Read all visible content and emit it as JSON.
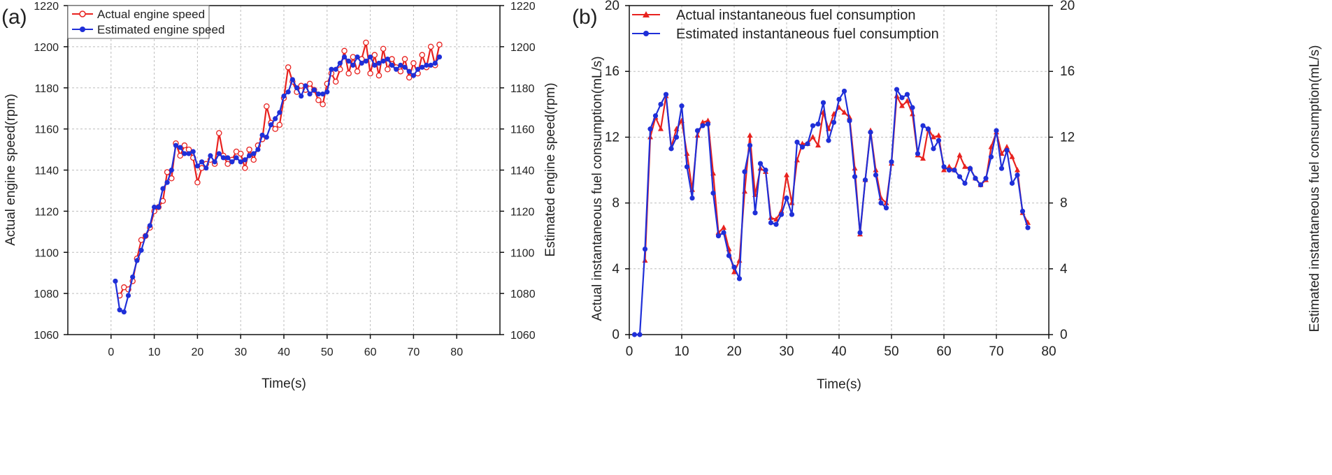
{
  "chart_data": [
    {
      "panel": "(a)",
      "type": "line",
      "xlabel": "Time(s)",
      "ylabel": "Actual engine speed(rpm)",
      "ylabel_right": "Estimated engine speed(rpm)",
      "xlim": [
        -10,
        90
      ],
      "ylim": [
        1060,
        1220
      ],
      "xticks": [
        0,
        10,
        20,
        30,
        40,
        50,
        60,
        70,
        80
      ],
      "yticks": [
        1060,
        1080,
        1100,
        1120,
        1140,
        1160,
        1180,
        1200,
        1220
      ],
      "grid": true,
      "legend_position": "top-left",
      "series": [
        {
          "name": "Actual engine speed",
          "color": "#e8221f",
          "marker": "open-circle",
          "x": [
            2,
            3,
            4,
            5,
            6,
            7,
            8,
            9,
            10,
            11,
            12,
            13,
            14,
            15,
            16,
            17,
            18,
            19,
            20,
            21,
            22,
            23,
            24,
            25,
            26,
            27,
            28,
            29,
            30,
            31,
            32,
            33,
            34,
            35,
            36,
            37,
            38,
            39,
            40,
            41,
            42,
            43,
            44,
            45,
            46,
            47,
            48,
            49,
            50,
            51,
            52,
            53,
            54,
            55,
            56,
            57,
            58,
            59,
            60,
            61,
            62,
            63,
            64,
            65,
            66,
            67,
            68,
            69,
            70,
            71,
            72,
            73,
            74,
            75,
            76
          ],
          "y": [
            1079,
            1083,
            1082,
            1086,
            1097,
            1106,
            1108,
            1112,
            1120,
            1122,
            1125,
            1139,
            1136,
            1153,
            1147,
            1152,
            1150,
            1146,
            1134,
            1141,
            1143,
            1145,
            1143,
            1158,
            1147,
            1143,
            1145,
            1149,
            1148,
            1141,
            1150,
            1145,
            1152,
            1155,
            1171,
            1163,
            1160,
            1162,
            1175,
            1190,
            1183,
            1178,
            1181,
            1179,
            1182,
            1179,
            1174,
            1172,
            1182,
            1187,
            1183,
            1189,
            1198,
            1187,
            1195,
            1188,
            1194,
            1202,
            1187,
            1196,
            1186,
            1199,
            1189,
            1194,
            1190,
            1188,
            1194,
            1185,
            1192,
            1187,
            1196,
            1190,
            1200,
            1191,
            1201
          ]
        },
        {
          "name": "Estimated engine speed",
          "color": "#1f2fd8",
          "marker": "filled-circle",
          "x": [
            1,
            2,
            3,
            4,
            5,
            6,
            7,
            8,
            9,
            10,
            11,
            12,
            13,
            14,
            15,
            16,
            17,
            18,
            19,
            20,
            21,
            22,
            23,
            24,
            25,
            26,
            27,
            28,
            29,
            30,
            31,
            32,
            33,
            34,
            35,
            36,
            37,
            38,
            39,
            40,
            41,
            42,
            43,
            44,
            45,
            46,
            47,
            48,
            49,
            50,
            51,
            52,
            53,
            54,
            55,
            56,
            57,
            58,
            59,
            60,
            61,
            62,
            63,
            64,
            65,
            66,
            67,
            68,
            69,
            70,
            71,
            72,
            73,
            74,
            75,
            76
          ],
          "y": [
            1086,
            1072,
            1071,
            1079,
            1088,
            1096,
            1101,
            1108,
            1113,
            1122,
            1122,
            1131,
            1134,
            1140,
            1152,
            1151,
            1148,
            1148,
            1149,
            1142,
            1144,
            1141,
            1147,
            1144,
            1148,
            1146,
            1146,
            1144,
            1146,
            1144,
            1145,
            1147,
            1148,
            1150,
            1157,
            1156,
            1162,
            1165,
            1168,
            1176,
            1178,
            1184,
            1180,
            1176,
            1181,
            1177,
            1179,
            1177,
            1177,
            1178,
            1189,
            1189,
            1192,
            1195,
            1193,
            1191,
            1195,
            1192,
            1193,
            1195,
            1191,
            1192,
            1193,
            1194,
            1191,
            1189,
            1191,
            1190,
            1188,
            1186,
            1189,
            1190,
            1191,
            1191,
            1192,
            1195
          ]
        }
      ]
    },
    {
      "panel": "(b)",
      "type": "line",
      "xlabel": "Time(s)",
      "ylabel": "Actual instantaneous fuel consumption(mL/s)",
      "ylabel_right": "Estimated instantaneous fuel consumption(mL/s)",
      "xlim": [
        0,
        80
      ],
      "ylim": [
        0,
        20
      ],
      "xticks": [
        0,
        10,
        20,
        30,
        40,
        50,
        60,
        70,
        80
      ],
      "yticks": [
        0,
        4,
        8,
        12,
        16,
        20
      ],
      "grid": true,
      "legend_position": "top-left",
      "series": [
        {
          "name": "Actual instantaneous fuel consumption",
          "color": "#e8221f",
          "marker": "triangle",
          "x": [
            3,
            4,
            5,
            6,
            7,
            8,
            9,
            10,
            11,
            12,
            13,
            14,
            15,
            16,
            17,
            18,
            19,
            20,
            21,
            22,
            23,
            24,
            25,
            26,
            27,
            28,
            29,
            30,
            31,
            32,
            33,
            34,
            35,
            36,
            37,
            38,
            39,
            40,
            41,
            42,
            43,
            44,
            45,
            46,
            47,
            48,
            49,
            50,
            51,
            52,
            53,
            54,
            55,
            56,
            57,
            58,
            59,
            60,
            61,
            62,
            63,
            64,
            65,
            66,
            67,
            68,
            69,
            70,
            71,
            72,
            73,
            74,
            75,
            76
          ],
          "y": [
            4.5,
            12.0,
            13.2,
            12.5,
            14.5,
            11.4,
            12.5,
            13.0,
            11.0,
            8.8,
            12.1,
            12.9,
            13.0,
            9.8,
            6.2,
            6.5,
            5.2,
            3.8,
            4.5,
            8.7,
            12.1,
            8.5,
            10.1,
            9.9,
            7.1,
            7.0,
            7.5,
            9.7,
            8.0,
            10.6,
            11.6,
            11.6,
            12.0,
            11.5,
            13.5,
            12.5,
            13.4,
            13.8,
            13.5,
            13.2,
            10.1,
            6.1,
            9.4,
            12.4,
            10.0,
            8.3,
            8.0,
            10.4,
            14.5,
            13.9,
            14.2,
            13.4,
            10.9,
            10.7,
            12.5,
            12.0,
            12.1,
            10.0,
            10.2,
            10.0,
            10.9,
            10.2,
            10.1,
            9.5,
            9.1,
            9.4,
            11.4,
            12.3,
            11.0,
            11.4,
            10.8,
            10.0,
            7.4,
            6.8
          ]
        },
        {
          "name": "Estimated instantaneous fuel consumption",
          "color": "#1f2fd8",
          "marker": "filled-circle",
          "x": [
            1,
            2,
            3,
            4,
            5,
            6,
            7,
            8,
            9,
            10,
            11,
            12,
            13,
            14,
            15,
            16,
            17,
            18,
            19,
            20,
            21,
            22,
            23,
            24,
            25,
            26,
            27,
            28,
            29,
            30,
            31,
            32,
            33,
            34,
            35,
            36,
            37,
            38,
            39,
            40,
            41,
            42,
            43,
            44,
            45,
            46,
            47,
            48,
            49,
            50,
            51,
            52,
            53,
            54,
            55,
            56,
            57,
            58,
            59,
            60,
            61,
            62,
            63,
            64,
            65,
            66,
            67,
            68,
            69,
            70,
            71,
            72,
            73,
            74,
            75,
            76
          ],
          "y": [
            0,
            0,
            5.2,
            12.5,
            13.3,
            14.0,
            14.6,
            11.3,
            12.0,
            13.9,
            10.2,
            8.3,
            12.4,
            12.7,
            12.8,
            8.6,
            6.0,
            6.2,
            4.8,
            4.1,
            3.4,
            9.9,
            11.5,
            7.4,
            10.4,
            10.0,
            6.8,
            6.7,
            7.3,
            8.3,
            7.3,
            11.7,
            11.4,
            11.6,
            12.7,
            12.8,
            14.1,
            11.8,
            12.9,
            14.3,
            14.8,
            13.0,
            9.6,
            6.2,
            9.4,
            12.3,
            9.7,
            8.0,
            7.7,
            10.5,
            14.9,
            14.4,
            14.6,
            13.8,
            11.0,
            12.7,
            12.5,
            11.3,
            11.8,
            10.2,
            10.0,
            10.0,
            9.6,
            9.2,
            10.1,
            9.5,
            9.1,
            9.5,
            10.8,
            12.4,
            10.1,
            11.2,
            9.2,
            9.7,
            7.5,
            6.5
          ]
        }
      ]
    }
  ]
}
